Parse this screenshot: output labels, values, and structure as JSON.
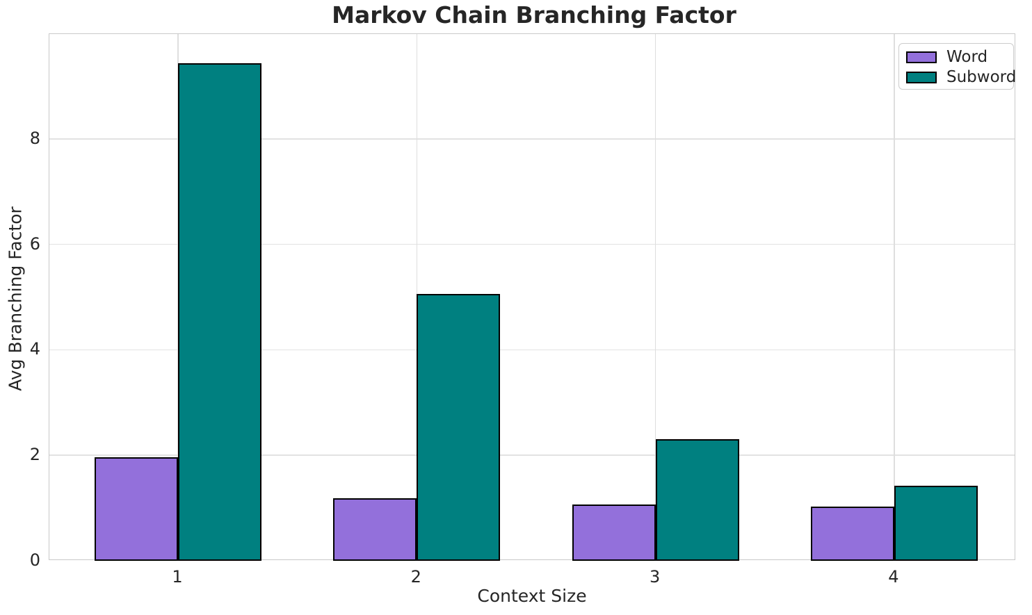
{
  "chart_data": {
    "type": "bar",
    "title": "Markov Chain Branching Factor",
    "xlabel": "Context Size",
    "ylabel": "Avg Branching Factor",
    "categories": [
      "1",
      "2",
      "3",
      "4"
    ],
    "series": [
      {
        "name": "Word",
        "color": "#9370DB",
        "edge_color": "#000000",
        "values": [
          1.96,
          1.19,
          1.07,
          1.03
        ]
      },
      {
        "name": "Subword",
        "color": "#008080",
        "edge_color": "#000000",
        "values": [
          9.43,
          5.06,
          2.31,
          1.42
        ]
      }
    ],
    "ylim": [
      0,
      9.99
    ],
    "yticks": [
      0,
      2,
      4,
      6,
      8
    ],
    "bar_width_units": 0.35,
    "grid": true,
    "legend_position": "upper right",
    "legend_entries": [
      "Word",
      "Subword"
    ]
  },
  "colors": {
    "background": "#ffffff",
    "text": "#262626",
    "grid": "#e2e2e2",
    "spine": "#c9c9c9"
  }
}
